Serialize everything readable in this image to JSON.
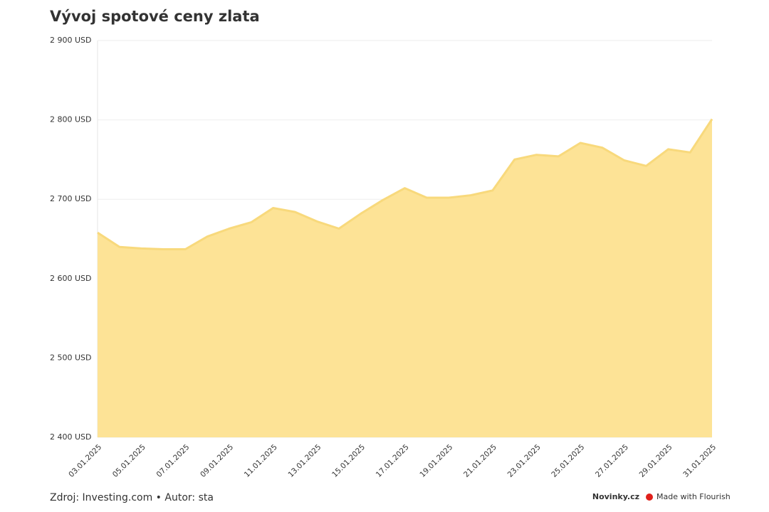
{
  "chart_data": {
    "type": "area",
    "title": "Vývoj spotové ceny zlata",
    "source": "Zdroj: Investing.com • Autor: sta",
    "publisher": "Novinky.cz",
    "credit": "Made with Flourish",
    "color": "#fde396",
    "line_color": "#f8d97c",
    "x": [
      "03.01.2025",
      "04.01.2025",
      "05.01.2025",
      "06.01.2025",
      "07.01.2025",
      "08.01.2025",
      "09.01.2025",
      "10.01.2025",
      "11.01.2025",
      "12.01.2025",
      "13.01.2025",
      "14.01.2025",
      "15.01.2025",
      "16.01.2025",
      "17.01.2025",
      "18.01.2025",
      "19.01.2025",
      "20.01.2025",
      "21.01.2025",
      "22.01.2025",
      "23.01.2025",
      "24.01.2025",
      "25.01.2025",
      "26.01.2025",
      "27.01.2025",
      "28.01.2025",
      "29.01.2025",
      "30.01.2025",
      "31.01.2025"
    ],
    "values": [
      2658,
      2640,
      2638,
      2637,
      2637,
      2653,
      2663,
      2671,
      2689,
      2684,
      2672,
      2663,
      2682,
      2699,
      2714,
      2702,
      2702,
      2705,
      2711,
      2750,
      2756,
      2754,
      2771,
      2765,
      2749,
      2742,
      2763,
      2759,
      2801
    ],
    "xticks": [
      "03.01.2025",
      "05.01.2025",
      "07.01.2025",
      "09.01.2025",
      "11.01.2025",
      "13.01.2025",
      "15.01.2025",
      "17.01.2025",
      "19.01.2025",
      "21.01.2025",
      "23.01.2025",
      "25.01.2025",
      "27.01.2025",
      "29.01.2025",
      "31.01.2025"
    ],
    "ylim": [
      2400,
      2900
    ],
    "yticks": [
      {
        "value": 2400,
        "label": "2 400 USD"
      },
      {
        "value": 2500,
        "label": "2 500 USD"
      },
      {
        "value": 2600,
        "label": "2 600 USD"
      },
      {
        "value": 2700,
        "label": "2 700 USD"
      },
      {
        "value": 2800,
        "label": "2 800 USD"
      },
      {
        "value": 2900,
        "label": "2 900 USD"
      }
    ],
    "grid": true
  }
}
